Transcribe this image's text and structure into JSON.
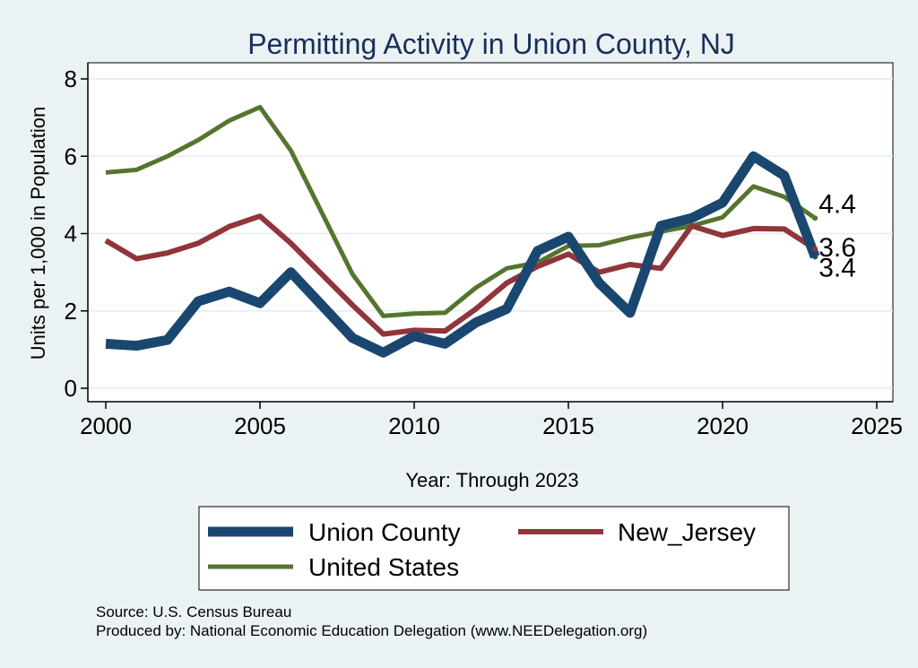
{
  "chart_data": {
    "type": "line",
    "title": "Permitting Activity in Union County, NJ",
    "xlabel": "Year: Through 2023",
    "ylabel": "Units per 1,000 in Population",
    "xlim": [
      2000,
      2025
    ],
    "ylim": [
      0,
      8
    ],
    "xticks": [
      "2000",
      "2005",
      "2010",
      "2015",
      "2020",
      "2025"
    ],
    "yticks": [
      "0",
      "2",
      "4",
      "6",
      "8"
    ],
    "grid": true,
    "legend_position": "bottom",
    "x": [
      2000,
      2001,
      2002,
      2003,
      2004,
      2005,
      2006,
      2007,
      2008,
      2009,
      2010,
      2011,
      2012,
      2013,
      2014,
      2015,
      2016,
      2017,
      2018,
      2019,
      2020,
      2021,
      2022,
      2023
    ],
    "series": [
      {
        "name": "Union County",
        "color": "#1a476f",
        "values": [
          1.15,
          1.1,
          1.25,
          2.25,
          2.5,
          2.2,
          3.0,
          2.15,
          1.3,
          0.92,
          1.35,
          1.15,
          1.7,
          2.05,
          3.55,
          3.92,
          2.72,
          1.95,
          4.2,
          4.4,
          4.8,
          6.0,
          5.5,
          3.4
        ],
        "end_label": "3.4"
      },
      {
        "name": "New_Jersey",
        "color": "#90353b",
        "values": [
          3.82,
          3.35,
          3.5,
          3.75,
          4.18,
          4.45,
          3.75,
          2.95,
          2.15,
          1.4,
          1.5,
          1.48,
          2.05,
          2.72,
          3.15,
          3.47,
          3.0,
          3.2,
          3.1,
          4.2,
          3.95,
          4.13,
          4.12,
          3.6
        ],
        "end_label": "3.6"
      },
      {
        "name": "United States",
        "color": "#55752f",
        "values": [
          5.58,
          5.65,
          6.0,
          6.42,
          6.92,
          7.27,
          6.15,
          4.55,
          2.95,
          1.87,
          1.93,
          1.95,
          2.6,
          3.1,
          3.25,
          3.68,
          3.7,
          3.9,
          4.05,
          4.2,
          4.42,
          5.22,
          4.95,
          4.4
        ],
        "end_label": "4.4"
      }
    ]
  },
  "notes": {
    "source": "Source: U.S. Census Bureau",
    "produced_by": "Produced by: National Economic Education Delegation (www.NEEDelegation.org)"
  }
}
